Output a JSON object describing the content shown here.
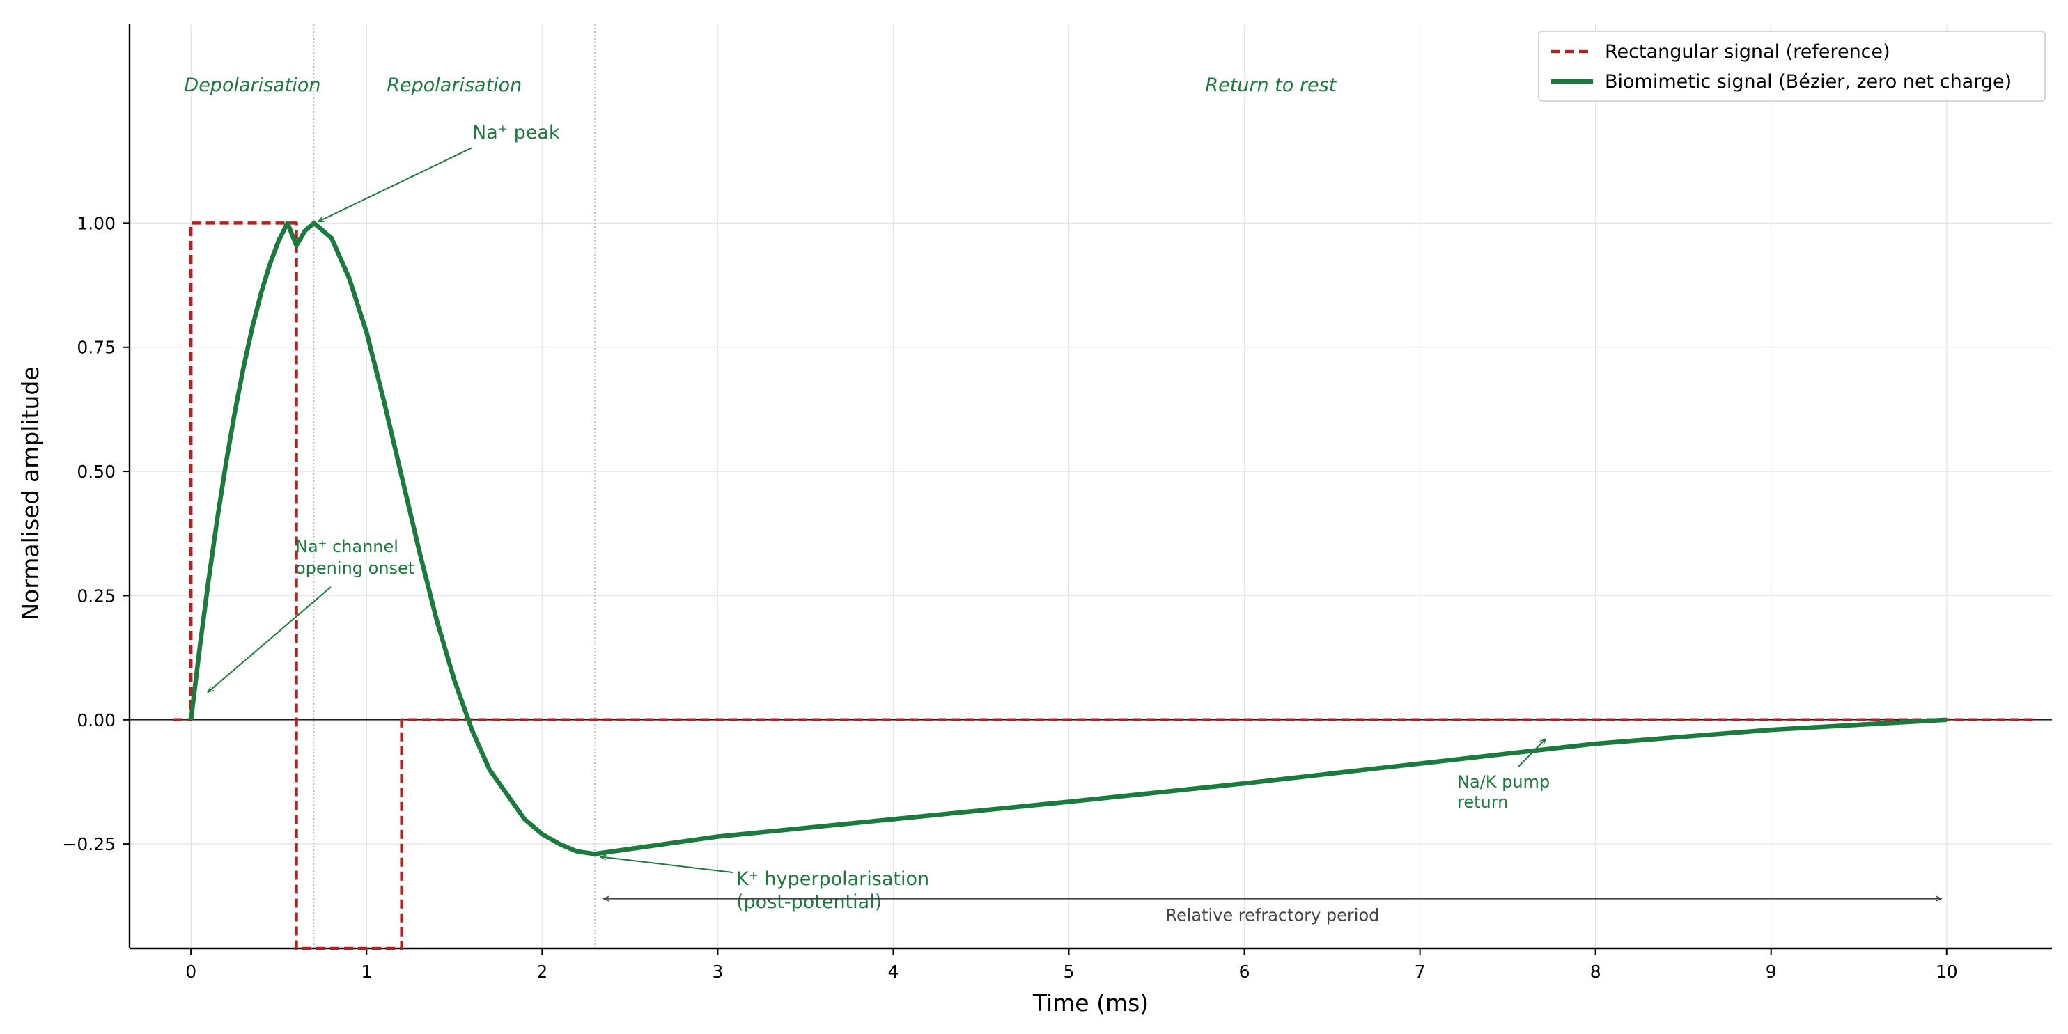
{
  "chart_data": {
    "type": "line",
    "xlabel": "Time (ms)",
    "ylabel": "Normalised amplitude",
    "xlim": [
      -0.35,
      10.6
    ],
    "ylim": [
      -0.46,
      1.4
    ],
    "x_ticks": [
      0,
      1,
      2,
      3,
      4,
      5,
      6,
      7,
      8,
      9,
      10
    ],
    "x_tick_labels": [
      "0",
      "1",
      "2",
      "3",
      "4",
      "5",
      "6",
      "7",
      "8",
      "9",
      "10"
    ],
    "y_ticks": [
      -0.25,
      0,
      0.25,
      0.5,
      0.75,
      1.0
    ],
    "y_tick_labels": [
      "−0.25",
      "0.00",
      "0.25",
      "0.50",
      "0.75",
      "1.00"
    ],
    "grid": true,
    "legend_position": "top-right",
    "colors": {
      "rectangular": "#b22222",
      "biomimetic": "#1b7a3d",
      "annotation_gray": "#444444"
    },
    "series": [
      {
        "name": "Rectangular signal (reference)",
        "style": "dashed",
        "color": "#b22222",
        "x": [
          -0.1,
          0,
          0,
          0.6,
          0.6,
          0.6,
          1.2,
          1.2,
          10.5
        ],
        "y": [
          0,
          0,
          1,
          1,
          0,
          -0.46,
          -0.46,
          0,
          0
        ]
      },
      {
        "name": "Biomimetic signal (Bézier, zero net charge)",
        "style": "solid",
        "color": "#1b7a3d",
        "x": [
          0,
          0.05,
          0.1,
          0.15,
          0.2,
          0.25,
          0.3,
          0.35,
          0.4,
          0.45,
          0.5,
          0.55,
          0.6,
          0.65,
          0.7,
          0.8,
          0.9,
          1.0,
          1.1,
          1.2,
          1.3,
          1.4,
          1.5,
          1.6,
          1.7,
          1.8,
          1.9,
          2.0,
          2.1,
          2.2,
          2.3,
          3,
          4,
          5,
          6,
          7,
          7.7,
          8,
          9,
          10
        ],
        "y": [
          0,
          0.146,
          0.281,
          0.405,
          0.518,
          0.62,
          0.711,
          0.791,
          0.86,
          0.918,
          0.965,
          1.0,
          0.955,
          0.985,
          1.0,
          0.97,
          0.89,
          0.78,
          0.64,
          0.49,
          0.34,
          0.2,
          0.08,
          -0.02,
          -0.1,
          -0.15,
          -0.2,
          -0.23,
          -0.25,
          -0.265,
          -0.27,
          -0.235,
          -0.2,
          -0.165,
          -0.128,
          -0.088,
          -0.06,
          -0.048,
          -0.02,
          0
        ]
      }
    ],
    "phase_labels": [
      {
        "text": "Depolarisation",
        "x": 0.35
      },
      {
        "text": "Repolarisation",
        "x": 1.5
      },
      {
        "text": "Return to rest",
        "x": 6.15
      }
    ],
    "phase_boundaries": [
      0.7,
      2.3
    ],
    "annotations": [
      {
        "lines": [
          "Na⁺ peak"
        ],
        "point": [
          0.7,
          1.0
        ]
      },
      {
        "lines": [
          "Na⁺ channel",
          "opening onset"
        ],
        "point": [
          0.08,
          0.05
        ]
      },
      {
        "lines": [
          "K⁺ hyperpolarisation",
          "(post-potential)"
        ],
        "point": [
          2.3,
          -0.27
        ]
      },
      {
        "lines": [
          "Na/K pump",
          "return"
        ],
        "point": [
          7.7,
          -0.03
        ]
      }
    ],
    "span_annotation": {
      "text": "Relative refractory period",
      "x_start": 2.35,
      "x_end": 9.97,
      "y": -0.36
    }
  }
}
